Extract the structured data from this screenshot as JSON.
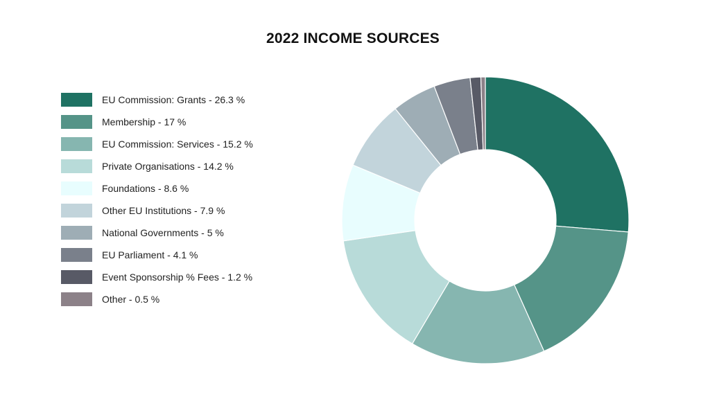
{
  "chart_data": {
    "type": "pie",
    "variant": "donut",
    "title": "2022 INCOME SOURCES",
    "legend_position": "left",
    "slices": [
      {
        "label": "EU Commission: Grants - 26.3 %",
        "value": 26.3,
        "color": "#1f7263"
      },
      {
        "label": "Membership - 17 %",
        "value": 17,
        "color": "#559488"
      },
      {
        "label": "EU Commission: Services - 15.2 %",
        "value": 15.2,
        "color": "#86b6b0"
      },
      {
        "label": "Private Organisations - 14.2 %",
        "value": 14.2,
        "color": "#b8dbd9"
      },
      {
        "label": "Foundations - 8.6 %",
        "value": 8.6,
        "color": "#e8fdfe"
      },
      {
        "label": "Other EU Institutions - 7.9 %",
        "value": 7.9,
        "color": "#c2d4db"
      },
      {
        "label": "National Governments - 5 %",
        "value": 5,
        "color": "#9eadb5"
      },
      {
        "label": "EU Parliament - 4.1 %",
        "value": 4.1,
        "color": "#7a808b"
      },
      {
        "label": "Event Sponsorship % Fees - 1.2 %",
        "value": 1.2,
        "color": "#585a66"
      },
      {
        "label": "Other - 0.5 %",
        "value": 0.5,
        "color": "#8c8188"
      }
    ]
  }
}
